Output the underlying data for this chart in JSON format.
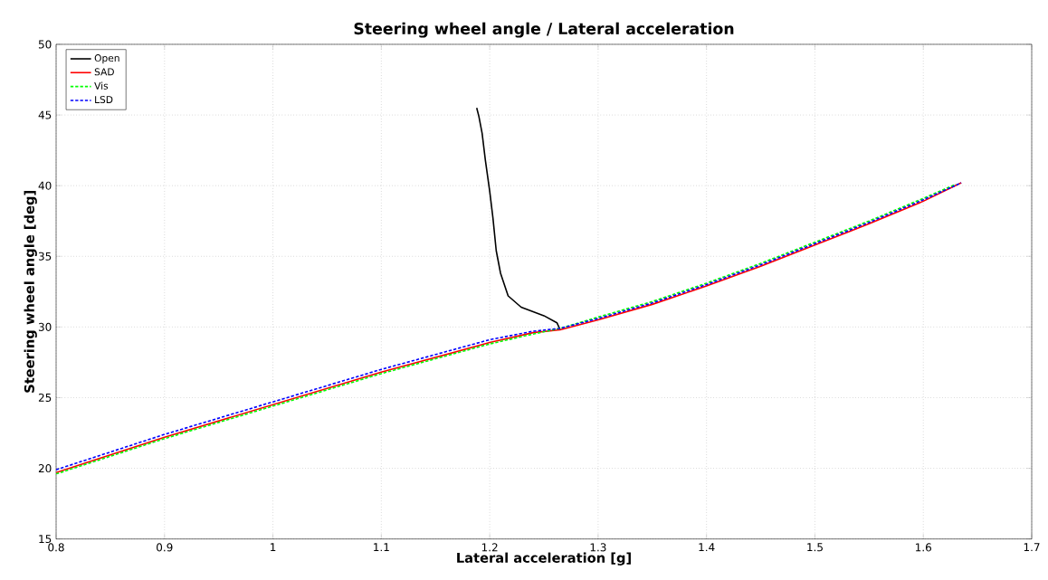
{
  "chart_data": {
    "type": "line",
    "title": "Steering wheel angle / Lateral acceleration",
    "xlabel": "Lateral acceleration [g]",
    "ylabel": "Steering wheel angle [deg]",
    "xlim": [
      0.8,
      1.7
    ],
    "ylim": [
      15,
      50
    ],
    "xticks": [
      0.8,
      0.9,
      1,
      1.1,
      1.2,
      1.3,
      1.4,
      1.5,
      1.6,
      1.7
    ],
    "yticks": [
      15,
      20,
      25,
      30,
      35,
      40,
      45,
      50
    ],
    "grid": true,
    "legend": "top left",
    "series": [
      {
        "name": "Open",
        "color": "#000000",
        "line_style": "solid",
        "x": [
          1.188,
          1.19,
          1.193,
          1.196,
          1.2,
          1.203,
          1.206,
          1.21,
          1.217,
          1.229,
          1.25,
          1.262,
          1.265
        ],
        "values": [
          45.5,
          44.9,
          43.7,
          41.8,
          39.6,
          37.7,
          35.4,
          33.8,
          32.2,
          31.4,
          30.8,
          30.3,
          29.8
        ]
      },
      {
        "name": "SAD",
        "color": "#ff0000",
        "line_style": "solid",
        "x": [
          0.8,
          0.9,
          1,
          1.1,
          1.2,
          1.24,
          1.265,
          1.3,
          1.35,
          1.4,
          1.45,
          1.5,
          1.55,
          1.6,
          1.635
        ],
        "values": [
          19.7,
          22.2,
          24.5,
          26.8,
          28.9,
          29.6,
          29.8,
          30.5,
          31.6,
          32.9,
          34.3,
          35.8,
          37.3,
          38.9,
          40.2
        ]
      },
      {
        "name": "Vis",
        "color": "#00ff00",
        "line_style": "dashed",
        "x": [
          0.8,
          0.9,
          1,
          1.1,
          1.2,
          1.24,
          1.265,
          1.3,
          1.35,
          1.4,
          1.45,
          1.5,
          1.55,
          1.6,
          1.63
        ],
        "values": [
          19.6,
          22.1,
          24.4,
          26.7,
          28.8,
          29.5,
          29.9,
          30.7,
          31.8,
          33.1,
          34.5,
          36,
          37.5,
          39.1,
          40.1
        ]
      },
      {
        "name": "LSD",
        "color": "#0000ff",
        "line_style": "dashed",
        "x": [
          0.8,
          0.9,
          1,
          1.1,
          1.2,
          1.24,
          1.265,
          1.3,
          1.35,
          1.4,
          1.45,
          1.5,
          1.55,
          1.6,
          1.635
        ],
        "values": [
          19.9,
          22.4,
          24.7,
          27,
          29.1,
          29.7,
          29.9,
          30.6,
          31.7,
          33,
          34.4,
          35.9,
          37.4,
          39,
          40.2
        ]
      }
    ]
  }
}
